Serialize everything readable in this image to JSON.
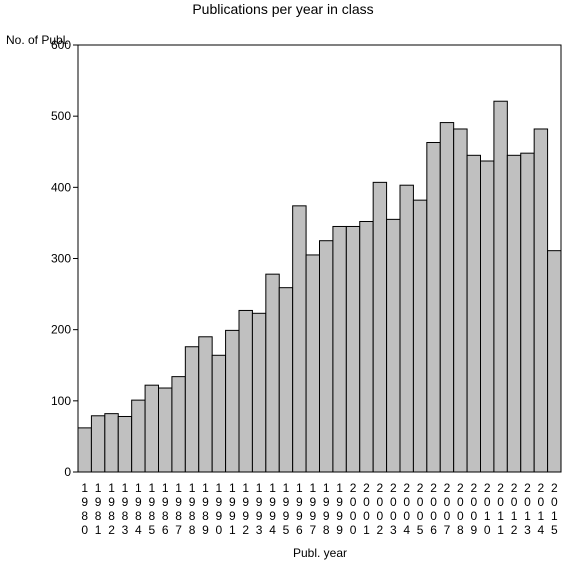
{
  "chart_data": {
    "type": "bar",
    "title": "Publications per year in class",
    "ylabel": "No. of Publ.",
    "xlabel": "Publ. year",
    "ylim": [
      0,
      600
    ],
    "yticks": [
      0,
      100,
      200,
      300,
      400,
      500,
      600
    ],
    "grid": false,
    "bar_color": "#c0c0c0",
    "categories": [
      "1980",
      "1981",
      "1982",
      "1983",
      "1984",
      "1985",
      "1986",
      "1987",
      "1988",
      "1989",
      "1990",
      "1991",
      "1992",
      "1993",
      "1994",
      "1995",
      "1996",
      "1997",
      "1998",
      "1999",
      "2000",
      "2001",
      "2002",
      "2003",
      "2004",
      "2005",
      "2006",
      "2007",
      "2008",
      "2009",
      "2010",
      "2011",
      "2012",
      "2013",
      "2014",
      "2015"
    ],
    "values": [
      62,
      79,
      82,
      78,
      101,
      122,
      118,
      134,
      176,
      190,
      164,
      199,
      227,
      223,
      278,
      259,
      374,
      305,
      325,
      345,
      345,
      352,
      407,
      355,
      403,
      382,
      463,
      491,
      482,
      445,
      437,
      521,
      445,
      448,
      482,
      311
    ]
  }
}
